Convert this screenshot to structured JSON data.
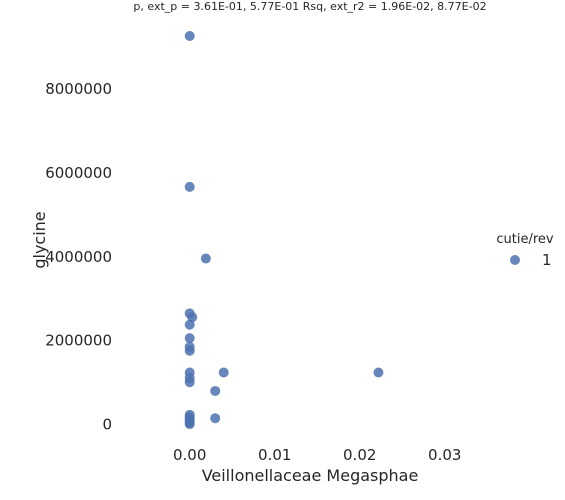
{
  "chart_data": {
    "type": "scatter",
    "title": "p, ext_p = 3.61E-01, 5.77E-01 Rsq, ext_r2 = 1.96E-02, 8.77E-02",
    "xlabel": "Veillonellaceae Megasphae",
    "ylabel": "glycine",
    "xlim": [
      -0.0082,
      0.0365
    ],
    "ylim": [
      -800000,
      9700000
    ],
    "x_ticks": [
      0.0,
      0.01,
      0.02,
      0.03
    ],
    "x_tick_labels": [
      "0.00",
      "0.01",
      "0.02",
      "0.03"
    ],
    "y_ticks": [
      0,
      2000000,
      4000000,
      6000000,
      8000000
    ],
    "y_tick_labels": [
      "0",
      "2000000",
      "4000000",
      "6000000",
      "8000000"
    ],
    "grid": false,
    "legend": {
      "title": "cutie/rev",
      "placement": "right",
      "entries": [
        "1"
      ]
    },
    "series": [
      {
        "name": "1",
        "color": "#4c72b0",
        "points": [
          {
            "x": 0.0,
            "y": 9270000
          },
          {
            "x": 0.0,
            "y": 5670000
          },
          {
            "x": 0.0019,
            "y": 3960000
          },
          {
            "x": 0.0,
            "y": 2650000
          },
          {
            "x": 0.0003,
            "y": 2560000
          },
          {
            "x": 0.0,
            "y": 2380000
          },
          {
            "x": 0.0,
            "y": 2060000
          },
          {
            "x": 0.0,
            "y": 1850000
          },
          {
            "x": 0.0,
            "y": 1760000
          },
          {
            "x": 0.0,
            "y": 1240000
          },
          {
            "x": 0.004,
            "y": 1240000
          },
          {
            "x": 0.0222,
            "y": 1240000
          },
          {
            "x": 0.0,
            "y": 1110000
          },
          {
            "x": 0.0,
            "y": 1010000
          },
          {
            "x": 0.003,
            "y": 800000
          },
          {
            "x": 0.0,
            "y": 230000
          },
          {
            "x": 0.003,
            "y": 150000
          },
          {
            "x": 0.0,
            "y": 170000
          },
          {
            "x": 0.0,
            "y": 120000
          },
          {
            "x": 0.0,
            "y": 80000
          },
          {
            "x": 0.0,
            "y": 40000
          },
          {
            "x": 0.0,
            "y": 10000
          }
        ]
      }
    ]
  }
}
